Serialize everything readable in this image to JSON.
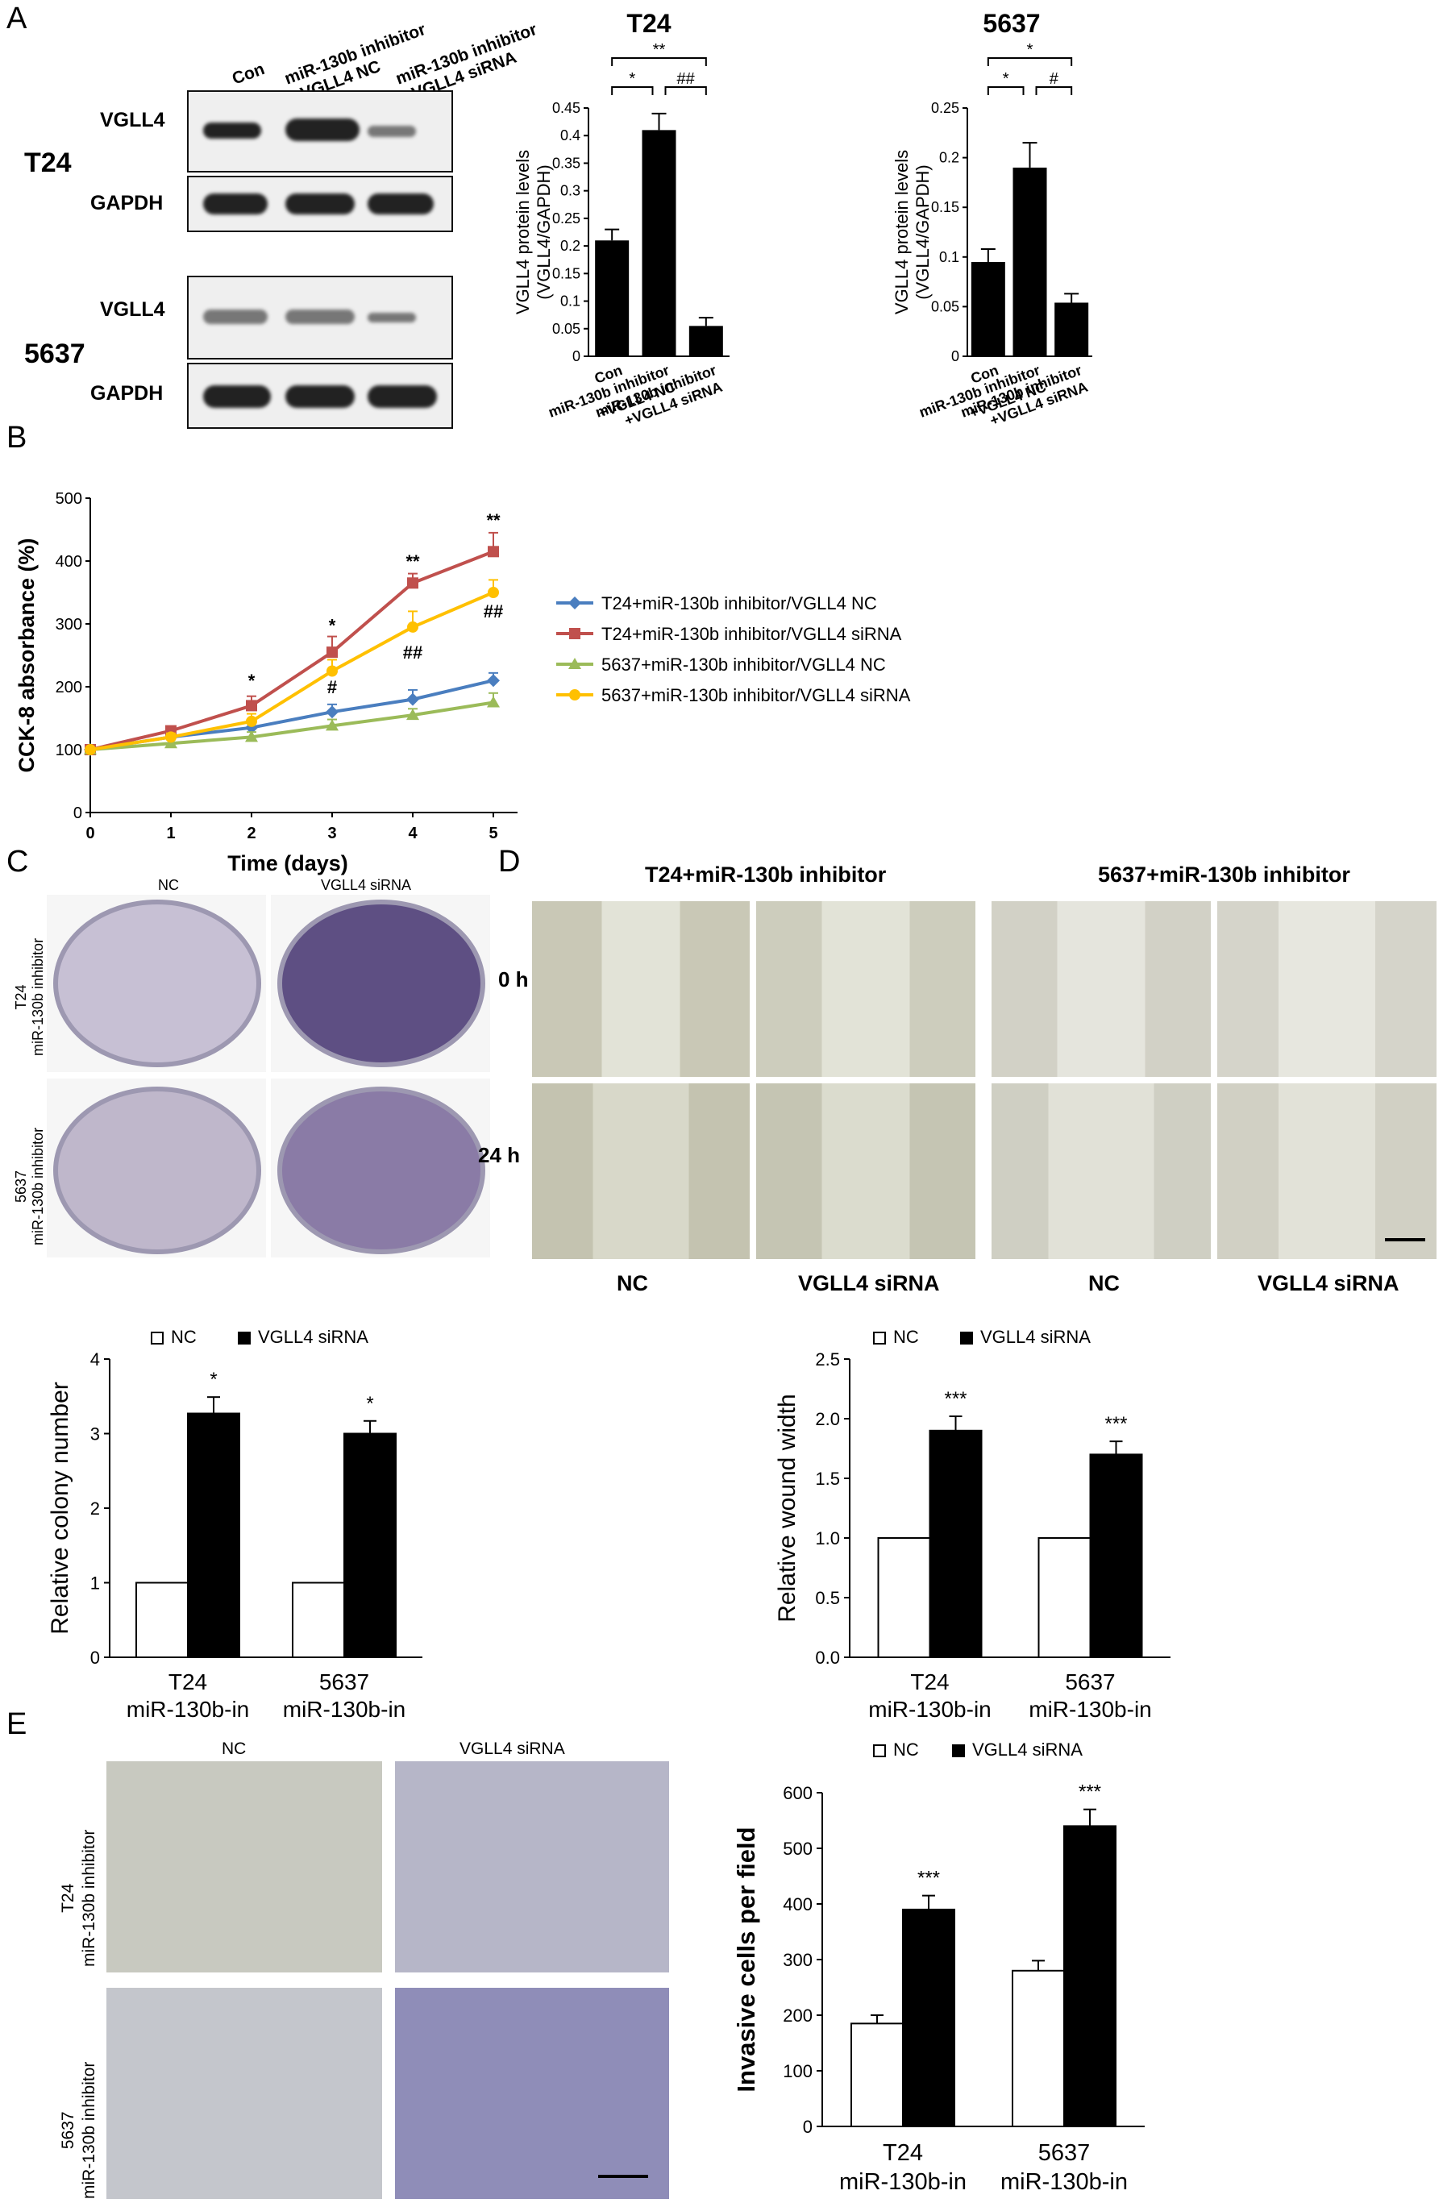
{
  "panels": {
    "A": "A",
    "B": "B",
    "C": "C",
    "D": "D",
    "E": "E"
  },
  "blot": {
    "col_labels": [
      "Con",
      "miR-130b inhibitor\n+VGLL4 NC",
      "miR-130b inhibitor\n+VGLL4 siRNA"
    ],
    "cell_lines": [
      "T24",
      "5637"
    ],
    "rows": [
      "VGLL4",
      "GAPDH",
      "VGLL4",
      "GAPDH"
    ]
  },
  "panel_c": {
    "col_labels": [
      "NC",
      "VGLL4 siRNA"
    ],
    "row_labels": [
      "T24\nmiR-130b inhibitor",
      "5637\nmiR-130b inhibitor"
    ]
  },
  "panel_d": {
    "group_labels": [
      "T24+miR-130b inhibitor",
      "5637+miR-130b inhibitor"
    ],
    "row_labels": [
      "0 h",
      "24 h"
    ],
    "col_labels": [
      "NC",
      "VGLL4 siRNA",
      "NC",
      "VGLL4 siRNA"
    ]
  },
  "panel_e": {
    "col_labels": [
      "NC",
      "VGLL4 siRNA"
    ],
    "row_labels": [
      "T24\nmiR-130b inhibitor",
      "5637\nmiR-130b inhibitor"
    ]
  },
  "chart_data": [
    {
      "id": "A-T24",
      "type": "bar",
      "title": "T24",
      "ylabel": "VGLL4 protein levels\n(VGLL4/GAPDH)",
      "categories": [
        "Con",
        "miR-130b inhibitor\n+VGLL4 NC",
        "miR-130b inhibitor\n+VGLL4 siRNA"
      ],
      "values": [
        0.21,
        0.41,
        0.055
      ],
      "errors": [
        0.02,
        0.03,
        0.015
      ],
      "ylim": [
        0,
        0.45
      ],
      "ticks": [
        "0",
        "0.05",
        "0.1",
        "0.15",
        "0.2",
        "0.25",
        "0.3",
        "0.35",
        "0.4",
        "0.45"
      ],
      "brackets": [
        {
          "from": 0,
          "to": 1,
          "label": "*"
        },
        {
          "from": 1,
          "to": 2,
          "label": "##"
        },
        {
          "from": 0,
          "to": 2,
          "label": "**"
        }
      ]
    },
    {
      "id": "A-5637",
      "type": "bar",
      "title": "5637",
      "ylabel": "VGLL4 protein levels\n(VGLL4/GAPDH)",
      "categories": [
        "Con",
        "miR-130b inhibitor\n+VGLL4 NC",
        "miR-130b inhibitor\n+VGLL4 siRNA"
      ],
      "values": [
        0.095,
        0.19,
        0.054
      ],
      "errors": [
        0.013,
        0.025,
        0.009
      ],
      "ylim": [
        0,
        0.25
      ],
      "ticks": [
        "0",
        "0.05",
        "0.1",
        "0.15",
        "0.2",
        "0.25"
      ],
      "brackets": [
        {
          "from": 0,
          "to": 1,
          "label": "*"
        },
        {
          "from": 1,
          "to": 2,
          "label": "#"
        },
        {
          "from": 0,
          "to": 2,
          "label": "*"
        }
      ]
    },
    {
      "id": "B",
      "type": "line",
      "xlabel": "Time (days)",
      "ylabel": "CCK-8 absorbance (%)",
      "x": [
        0,
        1,
        2,
        3,
        4,
        5
      ],
      "xlim": [
        0,
        5.3
      ],
      "ylim": [
        0,
        500
      ],
      "xticks": [
        "0",
        "1",
        "2",
        "3",
        "4",
        "5"
      ],
      "yticks": [
        "0",
        "100",
        "200",
        "300",
        "400",
        "500"
      ],
      "series": [
        {
          "name": "T24+miR-130b inhibitor/VGLL4 NC",
          "color": "#4a7ebf",
          "marker": "diamond",
          "values": [
            100,
            120,
            135,
            160,
            180,
            210
          ],
          "errors": [
            5,
            6,
            8,
            12,
            15,
            12
          ]
        },
        {
          "name": "T24+miR-130b inhibitor/VGLL4 siRNA",
          "color": "#c0504d",
          "marker": "square",
          "values": [
            100,
            130,
            170,
            255,
            365,
            415
          ],
          "errors": [
            5,
            6,
            15,
            25,
            15,
            30
          ]
        },
        {
          "name": "5637+miR-130b inhibitor/VGLL4 NC",
          "color": "#9bbb59",
          "marker": "triangle",
          "values": [
            100,
            110,
            120,
            138,
            155,
            175
          ],
          "errors": [
            5,
            6,
            8,
            10,
            10,
            15
          ]
        },
        {
          "name": "5637+miR-130b inhibitor/VGLL4 siRNA",
          "color": "#ffc000",
          "marker": "circle",
          "values": [
            100,
            120,
            145,
            225,
            295,
            350
          ],
          "errors": [
            5,
            6,
            12,
            18,
            25,
            20
          ]
        }
      ],
      "annotations": [
        {
          "x": 2,
          "y": 200,
          "text": "*"
        },
        {
          "x": 3,
          "y": 288,
          "text": "*"
        },
        {
          "x": 3,
          "y": 190,
          "text": "#"
        },
        {
          "x": 4,
          "y": 390,
          "text": "**"
        },
        {
          "x": 4,
          "y": 245,
          "text": "##"
        },
        {
          "x": 5,
          "y": 455,
          "text": "**"
        },
        {
          "x": 5,
          "y": 310,
          "text": "##"
        }
      ],
      "legend_position": "right"
    },
    {
      "id": "C-bar",
      "type": "bar",
      "ylabel": "Relative colony number",
      "categories": [
        "T24\nmiR-130b-in",
        "5637\nmiR-130b-in"
      ],
      "series": [
        {
          "name": "NC",
          "values": [
            1,
            1
          ],
          "errors": [
            0,
            0
          ],
          "fill": "#ffffff"
        },
        {
          "name": "VGLL4 siRNA",
          "values": [
            3.27,
            3
          ],
          "errors": [
            0.22,
            0.17
          ],
          "fill": "#000000"
        }
      ],
      "sig": [
        "*",
        "*"
      ],
      "ylim": [
        0,
        4
      ],
      "ticks": [
        "0",
        "1",
        "2",
        "3",
        "4"
      ],
      "legend_position": "top"
    },
    {
      "id": "D-bar",
      "type": "bar",
      "ylabel": "Relative wound width",
      "categories": [
        "T24\nmiR-130b-in",
        "5637\nmiR-130b-in"
      ],
      "series": [
        {
          "name": "NC",
          "values": [
            1,
            1
          ],
          "errors": [
            0,
            0
          ],
          "fill": "#ffffff"
        },
        {
          "name": "VGLL4 siRNA",
          "values": [
            1.9,
            1.7
          ],
          "errors": [
            0.12,
            0.11
          ],
          "fill": "#000000"
        }
      ],
      "sig": [
        "***",
        "***"
      ],
      "ylim": [
        0,
        2.5
      ],
      "ticks": [
        "0.0",
        "0.5",
        "1.0",
        "1.5",
        "2.0",
        "2.5"
      ],
      "legend_position": "top"
    },
    {
      "id": "E-bar",
      "type": "bar",
      "ylabel": "Invasive cells per field",
      "categories": [
        "T24\nmiR-130b-in",
        "5637\nmiR-130b-in"
      ],
      "series": [
        {
          "name": "NC",
          "values": [
            185,
            280
          ],
          "errors": [
            15,
            18
          ],
          "fill": "#ffffff"
        },
        {
          "name": "VGLL4 siRNA",
          "values": [
            390,
            540
          ],
          "errors": [
            25,
            30
          ],
          "fill": "#000000"
        }
      ],
      "sig": [
        "***",
        "***"
      ],
      "ylim": [
        0,
        600
      ],
      "ticks": [
        "0",
        "100",
        "200",
        "300",
        "400",
        "500",
        "600"
      ],
      "legend_position": "top"
    }
  ]
}
